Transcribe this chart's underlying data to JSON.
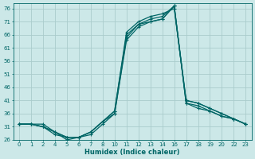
{
  "xlabel": "Humidex (Indice chaleur)",
  "bg_color": "#cce8e8",
  "line_color": "#006666",
  "grid_color": "#aacccc",
  "ylim": [
    26,
    78
  ],
  "yticks": [
    26,
    31,
    36,
    41,
    46,
    51,
    56,
    61,
    66,
    71,
    76
  ],
  "hours": [
    0,
    1,
    2,
    4,
    5,
    6,
    7,
    8,
    10,
    11,
    12,
    13,
    14,
    16,
    17,
    18,
    19,
    20,
    22,
    23
  ],
  "curves": [
    {
      "x_idx": [
        0,
        1,
        2,
        3,
        4,
        5,
        6,
        7,
        8,
        9,
        10,
        11,
        12,
        13,
        14,
        15,
        16,
        17,
        18,
        19
      ],
      "y": [
        32,
        32,
        31,
        28,
        27,
        27,
        28,
        32,
        36,
        65,
        70,
        71,
        72,
        77,
        40,
        38,
        37,
        35,
        34,
        32
      ]
    },
    {
      "x_idx": [
        0,
        1,
        2,
        3,
        4,
        5,
        6,
        7,
        8,
        9,
        10,
        11,
        12,
        13,
        14,
        15,
        16,
        17,
        18,
        19
      ],
      "y": [
        32,
        32,
        31,
        29,
        27,
        27,
        29,
        33,
        37,
        67,
        71,
        73,
        74,
        76,
        41,
        40,
        38,
        36,
        34,
        32
      ]
    },
    {
      "x_idx": [
        0,
        1,
        2,
        3,
        4,
        5,
        6,
        7,
        8,
        9,
        10,
        11,
        12,
        13,
        14,
        15,
        16,
        17,
        18,
        19
      ],
      "y": [
        32,
        32,
        31,
        29,
        27,
        27,
        29,
        33,
        36,
        64,
        69,
        71,
        72,
        77,
        40,
        39,
        37,
        35,
        34,
        32
      ]
    },
    {
      "x_idx": [
        0,
        1,
        2,
        3,
        4,
        5,
        6,
        7,
        8,
        9,
        10,
        11,
        12,
        13,
        14,
        15,
        16,
        17,
        18,
        19
      ],
      "y": [
        32,
        32,
        32,
        29,
        26,
        27,
        29,
        33,
        37,
        66,
        70,
        72,
        73,
        77,
        41,
        40,
        38,
        36,
        34,
        32
      ]
    }
  ]
}
